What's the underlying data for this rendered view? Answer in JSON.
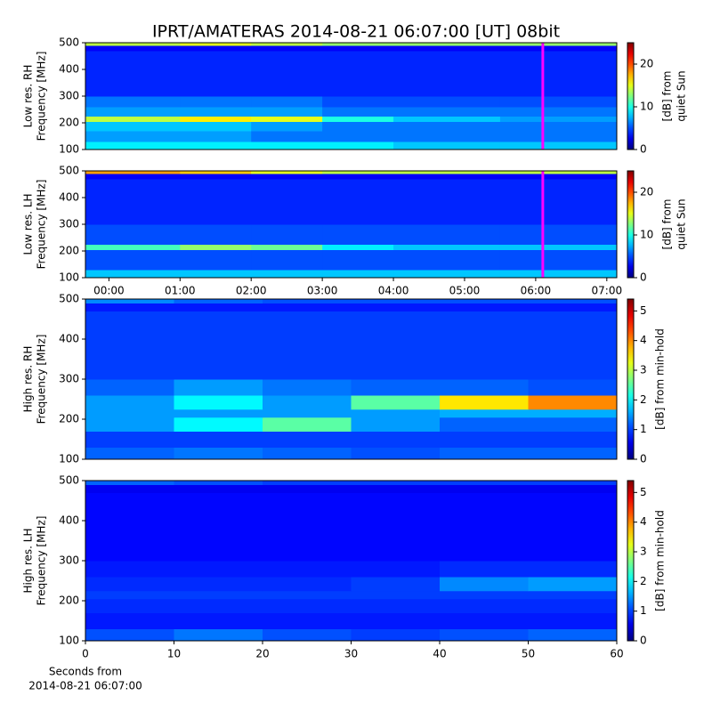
{
  "chart_data": [
    {
      "type": "heatmap",
      "title": "IPRT/AMATERAS 2014-08-21 06:07:00 [UT]   08bit",
      "ylabel": [
        "Low res. RH",
        "Frequency [MHz]"
      ],
      "colorbar_label": [
        "[dB] from",
        "quiet Sun"
      ],
      "ylim": [
        100,
        500
      ],
      "yticks": [
        100,
        200,
        300,
        400,
        500
      ],
      "xlim": [
        -0.33,
        7.14
      ],
      "x": [
        -0.33,
        1,
        2,
        3,
        4,
        5.5,
        7.14
      ],
      "y": [
        100,
        130,
        170,
        205,
        225,
        260,
        300,
        470,
        490,
        500
      ],
      "z": [
        [
          9,
          9,
          9,
          9,
          8,
          8
        ],
        [
          7,
          7,
          6,
          6,
          6,
          6
        ],
        [
          8,
          8,
          7,
          6,
          6,
          6
        ],
        [
          14,
          16,
          15,
          10,
          8,
          7
        ],
        [
          7,
          7,
          7,
          6,
          6,
          6
        ],
        [
          6,
          6,
          6,
          5,
          5,
          5
        ],
        [
          4,
          4,
          4,
          4,
          4,
          4
        ],
        [
          3,
          3,
          3,
          3,
          3,
          3
        ],
        [
          14,
          15,
          14,
          13,
          13,
          13
        ]
      ],
      "zlim": [
        0,
        25
      ],
      "zticks": [
        0,
        10,
        20
      ],
      "colormap": "jet",
      "vline": 6.1,
      "vline_color": "#ff00ff"
    },
    {
      "type": "heatmap",
      "ylabel": [
        "Low res. LH",
        "Frequency [MHz]"
      ],
      "colorbar_label": [
        "[dB] from",
        "quiet Sun"
      ],
      "ylim": [
        100,
        500
      ],
      "yticks": [
        100,
        200,
        300,
        400,
        500
      ],
      "xlim": [
        -0.33,
        7.14
      ],
      "xticks": [
        {
          "value": 0,
          "label": "00:00"
        },
        {
          "value": 1,
          "label": "01:00"
        },
        {
          "value": 2,
          "label": "02:00"
        },
        {
          "value": 3,
          "label": "03:00"
        },
        {
          "value": 4,
          "label": "04:00"
        },
        {
          "value": 5,
          "label": "05:00"
        },
        {
          "value": 6,
          "label": "06:00"
        },
        {
          "value": 7,
          "label": "07:00"
        }
      ],
      "x": [
        -0.33,
        1,
        2,
        3,
        4,
        5.5,
        7.14
      ],
      "y": [
        100,
        130,
        170,
        205,
        225,
        260,
        300,
        470,
        490,
        500
      ],
      "z": [
        [
          8,
          8,
          8,
          8,
          8,
          8
        ],
        [
          5,
          5,
          5,
          5,
          5,
          5
        ],
        [
          5,
          5,
          5,
          5,
          5,
          5
        ],
        [
          11,
          13,
          12,
          9,
          8,
          8
        ],
        [
          5,
          5,
          5,
          5,
          5,
          5
        ],
        [
          5,
          5,
          5,
          5,
          5,
          5
        ],
        [
          4,
          4,
          4,
          4,
          4,
          4
        ],
        [
          3,
          3,
          3,
          3,
          3,
          3
        ],
        [
          18,
          17,
          15,
          14,
          14,
          14
        ]
      ],
      "zlim": [
        0,
        25
      ],
      "zticks": [
        0,
        10,
        20
      ],
      "colormap": "jet",
      "vline": 6.1,
      "vline_color": "#ff00ff"
    },
    {
      "type": "heatmap",
      "ylabel": [
        "High res. RH",
        "Frequency [MHz]"
      ],
      "colorbar_label": [
        "[dB] from min-hold"
      ],
      "ylim": [
        100,
        500
      ],
      "yticks": [
        100,
        200,
        300,
        400,
        500
      ],
      "xlim": [
        0,
        60
      ],
      "x": [
        0,
        10,
        20,
        30,
        40,
        50,
        60
      ],
      "y": [
        100,
        130,
        170,
        205,
        225,
        260,
        300,
        470,
        490,
        500
      ],
      "z": [
        [
          1.2,
          1.3,
          1.2,
          1.1,
          1.2,
          1.2
        ],
        [
          1,
          1,
          1,
          1,
          1,
          1
        ],
        [
          1.5,
          2,
          2.5,
          1.5,
          1.2,
          1.2
        ],
        [
          1.5,
          1.5,
          1.5,
          1.5,
          1.6,
          1.6
        ],
        [
          1.5,
          2,
          1.5,
          2.5,
          3.5,
          4
        ],
        [
          1.2,
          1.5,
          1.3,
          1.2,
          1.2,
          1.1
        ],
        [
          1,
          1,
          1,
          1,
          1,
          1
        ],
        [
          0.8,
          0.8,
          0.8,
          0.8,
          0.8,
          0.8
        ],
        [
          1.4,
          1.2,
          1.1,
          1.1,
          1.1,
          1.1
        ]
      ],
      "zlim": [
        0,
        5.4
      ],
      "zticks": [
        0,
        1,
        2,
        3,
        4,
        5
      ],
      "colormap": "jet"
    },
    {
      "type": "heatmap",
      "ylabel": [
        "High res. LH",
        "Frequency [MHz]"
      ],
      "colorbar_label": [
        "[dB] from min-hold"
      ],
      "xlabel": [
        "Seconds from",
        "2014-08-21 06:07:00"
      ],
      "ylim": [
        100,
        500
      ],
      "yticks": [
        100,
        200,
        300,
        400,
        500
      ],
      "xlim": [
        0,
        60
      ],
      "xticks": [
        0,
        10,
        20,
        30,
        40,
        50,
        60
      ],
      "x": [
        0,
        10,
        20,
        30,
        40,
        50,
        60
      ],
      "y": [
        100,
        130,
        170,
        205,
        225,
        260,
        300,
        470,
        490,
        500
      ],
      "z": [
        [
          1.1,
          1.3,
          1.1,
          1,
          1.1,
          1.2
        ],
        [
          0.8,
          0.8,
          0.8,
          0.8,
          0.8,
          0.8
        ],
        [
          0.9,
          0.9,
          0.9,
          0.9,
          0.9,
          0.9
        ],
        [
          1,
          1,
          1,
          1,
          1,
          1
        ],
        [
          0.9,
          0.9,
          0.9,
          1,
          1.4,
          1.5
        ],
        [
          0.8,
          0.8,
          0.8,
          0.8,
          0.9,
          0.9
        ],
        [
          0.7,
          0.7,
          0.7,
          0.7,
          0.7,
          0.7
        ],
        [
          0.6,
          0.6,
          0.6,
          0.6,
          0.6,
          0.6
        ],
        [
          1.2,
          1.1,
          1,
          1,
          1,
          1
        ]
      ],
      "zlim": [
        0,
        5.4
      ],
      "zticks": [
        0,
        1,
        2,
        3,
        4,
        5
      ],
      "colormap": "jet"
    }
  ]
}
